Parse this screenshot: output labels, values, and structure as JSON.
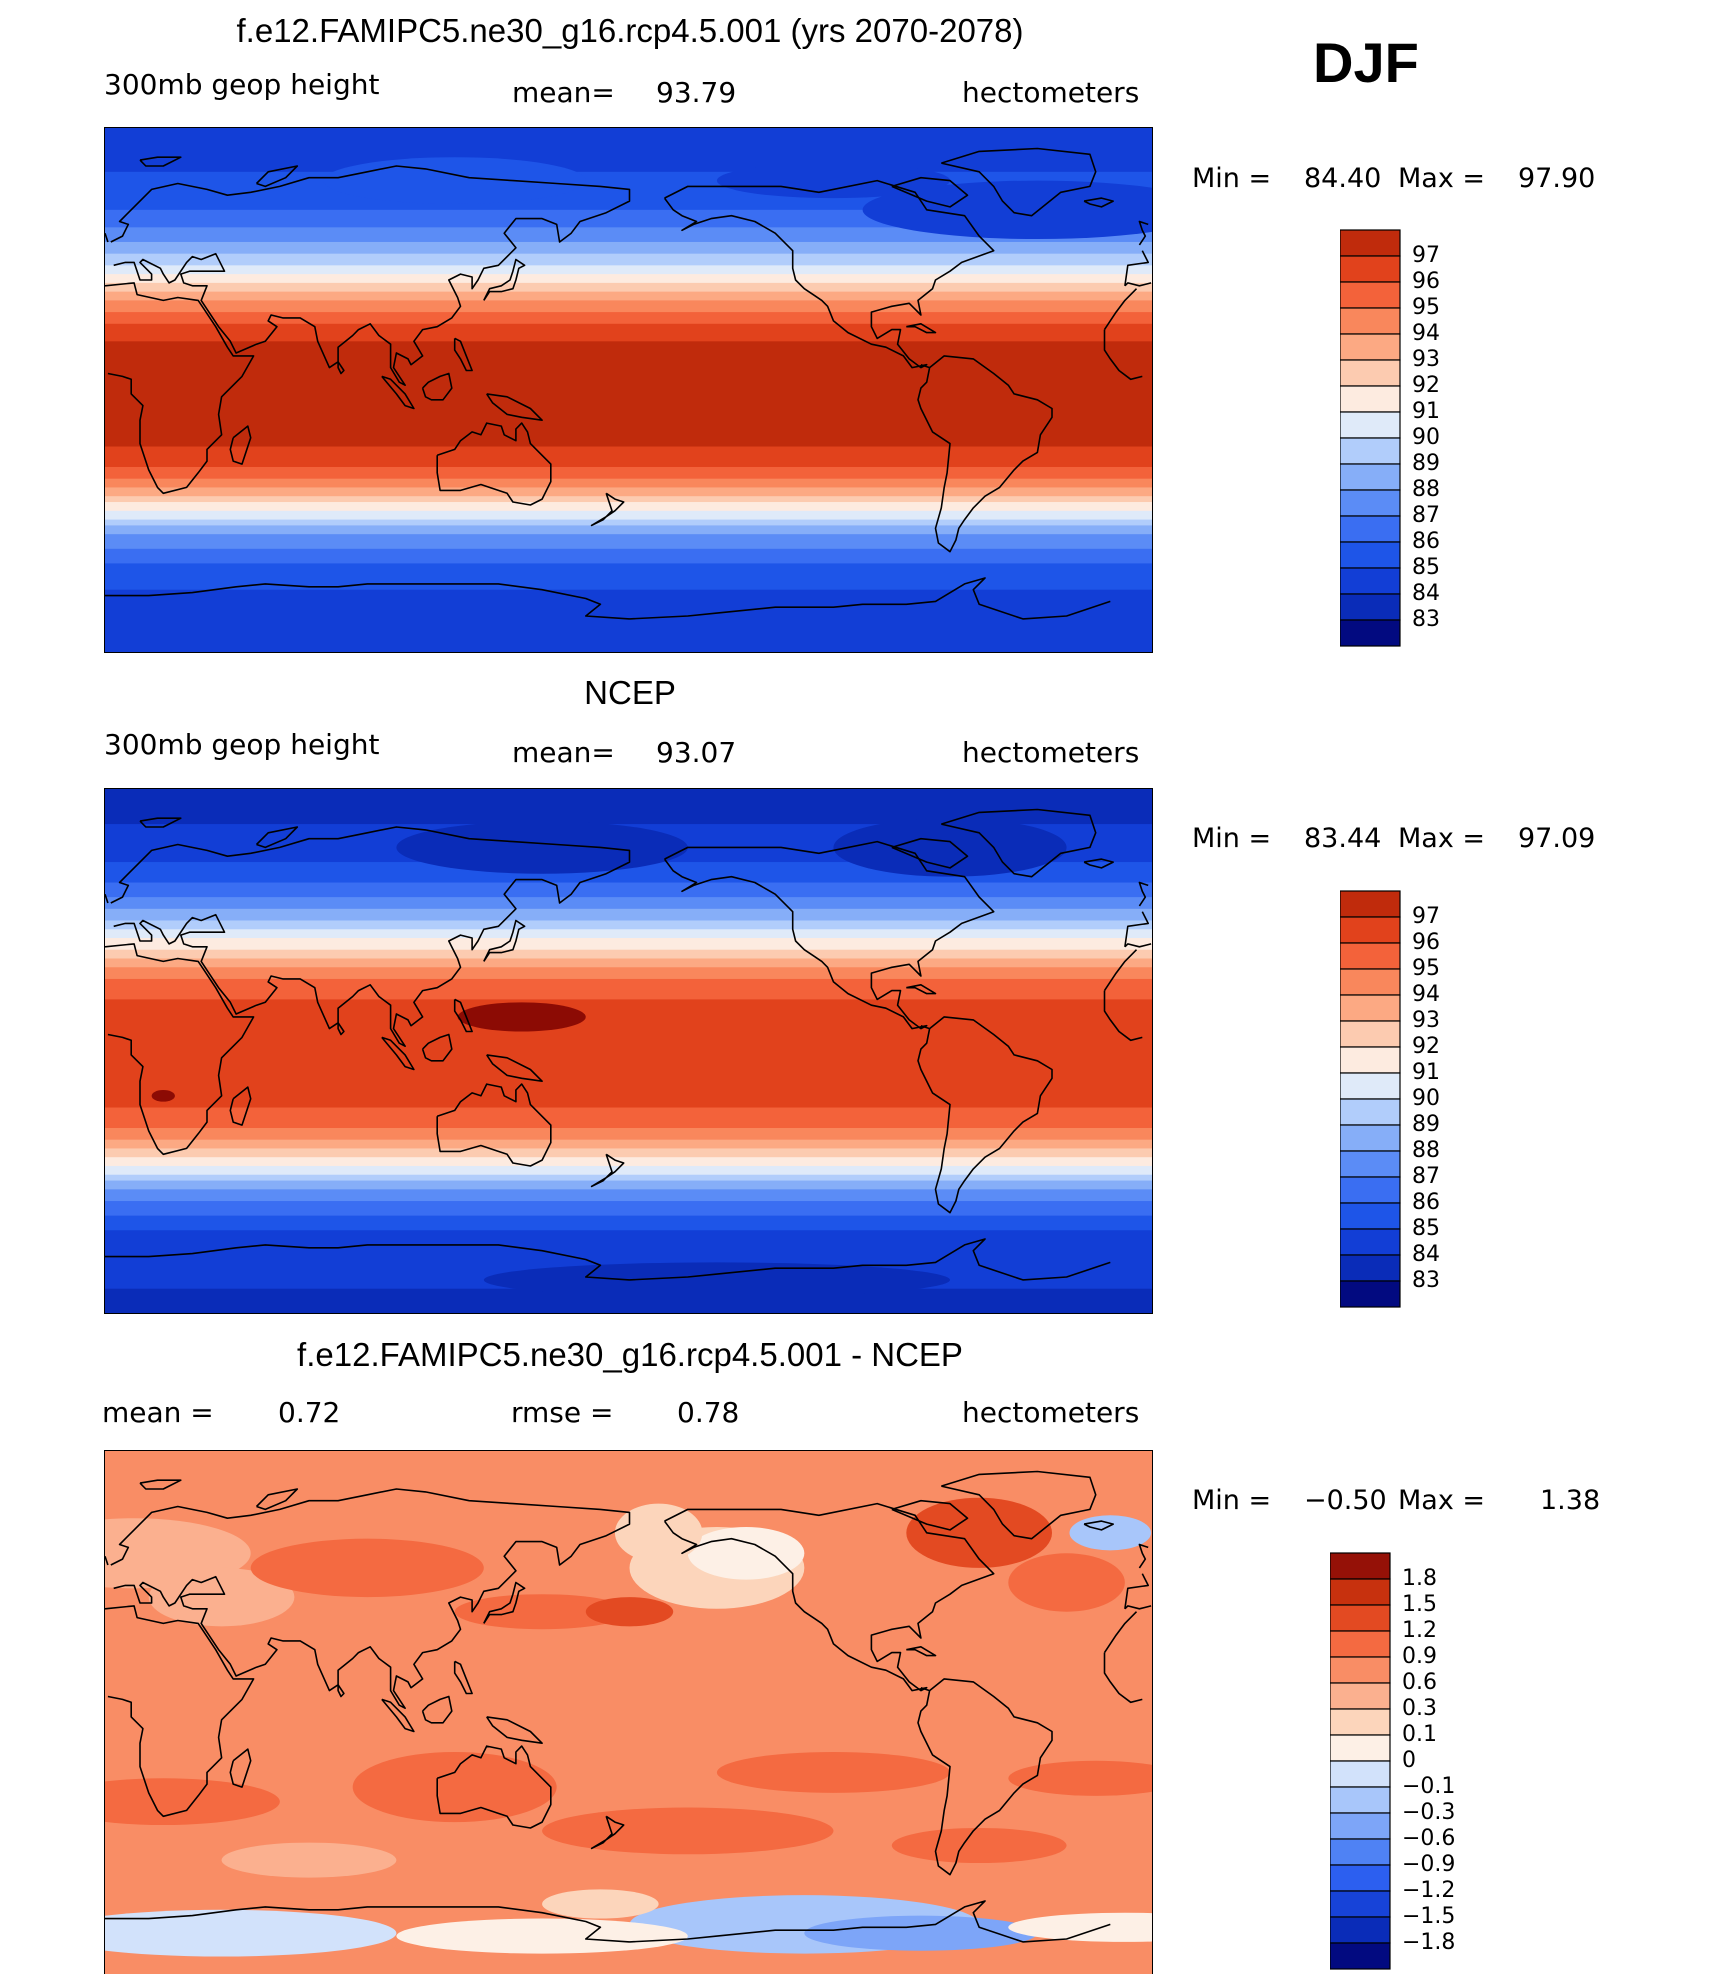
{
  "season": "DJF",
  "units": "hectometers",
  "colors": {
    "abs": [
      "#020a80",
      "#0a2cb8",
      "#123ed6",
      "#1e55e8",
      "#3a6ef2",
      "#5b8cf6",
      "#86aef8",
      "#b1cdfb",
      "#dfeaf9",
      "#fdebe0",
      "#fccbb0",
      "#fca983",
      "#f9875c",
      "#f3623a",
      "#e1421c",
      "#c02b0c",
      "#8c0b04"
    ],
    "diff": [
      "#020a80",
      "#0a2cb8",
      "#1743d8",
      "#2c5ff0",
      "#4f82f4",
      "#7da5f8",
      "#a8c6fa",
      "#d2e2fb",
      "#fdf0e6",
      "#fcd5bb",
      "#fbb08f",
      "#f98d65",
      "#f46a41",
      "#e34a22",
      "#c7310e",
      "#951107"
    ]
  },
  "panels": [
    {
      "name": "model",
      "title": "f.e12.FAMIPC5.ne30_g16.rcp4.5.001 (yrs 2070-2078)",
      "variable": "300mb  geop  height",
      "mean_label": "mean=",
      "mean": "93.79",
      "units": "hectometers",
      "min_label": "Min =",
      "min": "84.40",
      "max_label": "Max =",
      "max": "97.90",
      "colorbar": [
        "97",
        "96",
        "95",
        "94",
        "93",
        "92",
        "91",
        "90",
        "89",
        "88",
        "87",
        "86",
        "85",
        "84",
        "83"
      ]
    },
    {
      "name": "ncep",
      "title": "NCEP",
      "variable": "300mb  geop  height",
      "mean_label": "mean=",
      "mean": "93.07",
      "units": "hectometers",
      "min_label": "Min =",
      "min": "83.44",
      "max_label": "Max =",
      "max": "97.09",
      "colorbar": [
        "97",
        "96",
        "95",
        "94",
        "93",
        "92",
        "91",
        "90",
        "89",
        "88",
        "87",
        "86",
        "85",
        "84",
        "83"
      ]
    },
    {
      "name": "diff",
      "title": "f.e12.FAMIPC5.ne30_g16.rcp4.5.001 - NCEP",
      "mean_label": "mean =",
      "mean": "0.72",
      "rmse_label": "rmse =",
      "rmse": "0.78",
      "units": "hectometers",
      "min_label": "Min =",
      "min": "−0.50",
      "max_label": "Max =",
      "max": "1.38",
      "colorbar": [
        "1.8",
        "1.5",
        "1.2",
        "0.9",
        "0.6",
        "0.3",
        "0.1",
        "0",
        "−0.1",
        "−0.3",
        "−0.6",
        "−0.9",
        "−1.2",
        "−1.5",
        "−1.8"
      ]
    }
  ],
  "chart_data": [
    {
      "type": "heatmap",
      "title": "f.e12.FAMIPC5.ne30_g16.rcp4.5.001 (yrs 2070-2078)",
      "field": "300mb geop height",
      "units": "hectometers",
      "mean": 93.79,
      "min": 84.4,
      "max": 97.9,
      "levels": [
        83,
        84,
        85,
        86,
        87,
        88,
        89,
        90,
        91,
        92,
        93,
        94,
        95,
        96,
        97
      ],
      "projection": "cylindrical equidistant, centered 180",
      "zonal_profile_lat": [
        90,
        80,
        70,
        60,
        50,
        45,
        40,
        35,
        30,
        25,
        20,
        10,
        0,
        -10,
        -20,
        -25,
        -30,
        -35,
        -40,
        -45,
        -50,
        -60,
        -70,
        -80,
        -90
      ],
      "zonal_profile_value": [
        84.6,
        84.8,
        85.2,
        86.3,
        88.4,
        89.6,
        91.2,
        92.8,
        94.4,
        95.7,
        96.8,
        97.6,
        97.8,
        97.6,
        96.9,
        96.0,
        94.8,
        93.0,
        91.2,
        89.3,
        87.6,
        85.6,
        84.8,
        84.5,
        84.4
      ]
    },
    {
      "type": "heatmap",
      "title": "NCEP",
      "field": "300mb geop height",
      "units": "hectometers",
      "mean": 93.07,
      "min": 83.44,
      "max": 97.09,
      "levels": [
        83,
        84,
        85,
        86,
        87,
        88,
        89,
        90,
        91,
        92,
        93,
        94,
        95,
        96,
        97
      ],
      "projection": "cylindrical equidistant, centered 180",
      "zonal_profile_lat": [
        90,
        80,
        70,
        60,
        50,
        45,
        40,
        35,
        30,
        25,
        20,
        10,
        0,
        -10,
        -20,
        -25,
        -30,
        -35,
        -40,
        -45,
        -50,
        -60,
        -70,
        -80,
        -90
      ],
      "zonal_profile_value": [
        83.6,
        83.9,
        84.4,
        85.6,
        87.8,
        89.1,
        90.7,
        92.3,
        93.8,
        95.0,
        95.9,
        96.5,
        96.6,
        96.5,
        95.9,
        95.0,
        93.9,
        92.2,
        90.4,
        88.6,
        87.0,
        85.0,
        84.3,
        84.0,
        83.8
      ]
    },
    {
      "type": "heatmap",
      "title": "f.e12.FAMIPC5.ne30_g16.rcp4.5.001 - NCEP",
      "units": "hectometers",
      "mean": 0.72,
      "rmse": 0.78,
      "min": -0.5,
      "max": 1.38,
      "levels": [
        -1.8,
        -1.5,
        -1.2,
        -0.9,
        -0.6,
        -0.3,
        -0.1,
        0,
        0.1,
        0.3,
        0.6,
        0.9,
        1.2,
        1.5,
        1.8
      ],
      "projection": "cylindrical equidistant, centered 180"
    }
  ]
}
